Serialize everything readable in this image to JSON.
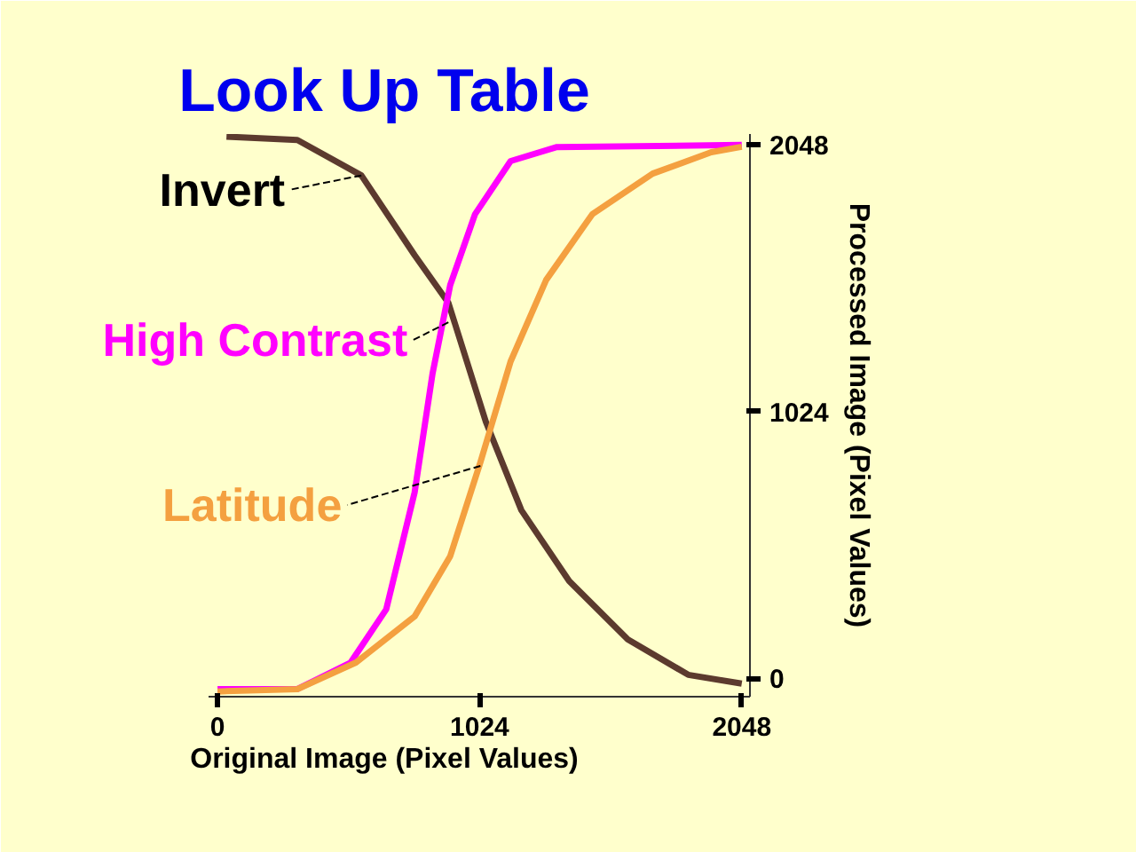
{
  "chart_data": {
    "type": "line",
    "title": "Look Up Table",
    "xlabel": "Original Image (Pixel Values)",
    "ylabel": "Processed Image (Pixel Values)",
    "xlim": [
      -35,
      2080
    ],
    "ylim": [
      -70,
      2090
    ],
    "xticks": [
      0,
      1024,
      2048
    ],
    "yticks": [
      0,
      1024,
      2048
    ],
    "grid": false,
    "marker": "none",
    "line_style": "solid",
    "series": [
      {
        "color": "#5c3a2e",
        "x": [
          35,
          312,
          562,
          770,
          902,
          1048,
          1187,
          1374,
          1603,
          1839,
          2048
        ],
        "values": [
          2080,
          2067,
          1931,
          1625,
          1442,
          986,
          646,
          374,
          150,
          14,
          -20
        ]
      },
      {
        "color": "#ff00ff",
        "x": [
          0,
          312,
          520,
          659,
          770,
          840,
          909,
          1006,
          1145,
          1326,
          2048
        ],
        "values": [
          -41,
          -41,
          61,
          265,
          714,
          1170,
          1510,
          1782,
          1986,
          2040,
          2048
        ]
      },
      {
        "color": "#f4a040",
        "x": [
          0,
          312,
          541,
          770,
          909,
          1027,
          1145,
          1284,
          1464,
          1700,
          1929,
          2048
        ],
        "values": [
          -50,
          -41,
          61,
          238,
          469,
          830,
          1217,
          1530,
          1782,
          1938,
          2020,
          2041
        ]
      }
    ],
    "annotations": [
      {
        "text": "Invert",
        "x": 562,
        "y": 1931
      },
      {
        "text": "High Contrast",
        "x": 902,
        "y": 1367
      },
      {
        "text": "Latitude",
        "x": 1027,
        "y": 816
      }
    ]
  }
}
